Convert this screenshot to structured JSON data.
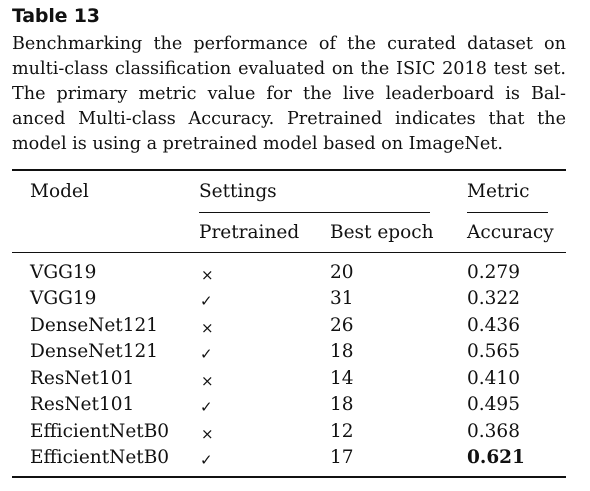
{
  "table_label": "Table 13",
  "caption_lines": [
    "Benchmarking the performance of the curated dataset on",
    "multi-class classification evaluated on the ISIC 2018 test set.",
    "The primary metric value for the live leaderboard is Bal-",
    "anced Multi-class Accuracy. Pretrained indicates that the",
    "model is using a pretrained model based on ImageNet."
  ],
  "header": {
    "model": "Model",
    "settings": "Settings",
    "metric": "Metric",
    "pretrained": "Pretrained",
    "best_epoch": "Best epoch",
    "accuracy": "Accuracy"
  },
  "rows": [
    {
      "model": "VGG19",
      "pretrained": "×",
      "best_epoch": "20",
      "accuracy": "0.279",
      "bold": false
    },
    {
      "model": "VGG19",
      "pretrained": "✓",
      "best_epoch": "31",
      "accuracy": "0.322",
      "bold": false
    },
    {
      "model": "DenseNet121",
      "pretrained": "×",
      "best_epoch": "26",
      "accuracy": "0.436",
      "bold": false
    },
    {
      "model": "DenseNet121",
      "pretrained": "✓",
      "best_epoch": "18",
      "accuracy": "0.565",
      "bold": false
    },
    {
      "model": "ResNet101",
      "pretrained": "×",
      "best_epoch": "14",
      "accuracy": "0.410",
      "bold": false
    },
    {
      "model": "ResNet101",
      "pretrained": "✓",
      "best_epoch": "18",
      "accuracy": "0.495",
      "bold": false
    },
    {
      "model": "EfficientNetB0",
      "pretrained": "×",
      "best_epoch": "12",
      "accuracy": "0.368",
      "bold": false
    },
    {
      "model": "EfficientNetB0",
      "pretrained": "✓",
      "best_epoch": "17",
      "accuracy": "0.621",
      "bold": true
    }
  ]
}
